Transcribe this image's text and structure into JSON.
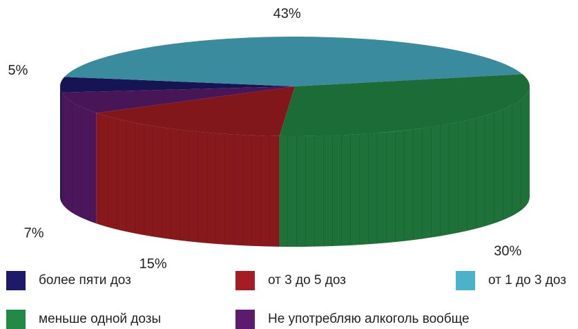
{
  "chart_data": {
    "type": "pie",
    "categories": [
      "более пяти доз",
      "от 3 до 5 доз",
      "от 1 до 3  доз",
      "меньше одной дозы",
      "Не употребляю алкоголь вообще"
    ],
    "values": [
      5,
      15,
      43,
      30,
      7
    ],
    "labels": [
      "5%",
      "15%",
      "43%",
      "30%",
      "7%"
    ],
    "colors": [
      "#1d1a6b",
      "#a51d22",
      "#4cb2ca",
      "#238a45",
      "#5c1b6e"
    ],
    "legend_position": "bottom"
  }
}
